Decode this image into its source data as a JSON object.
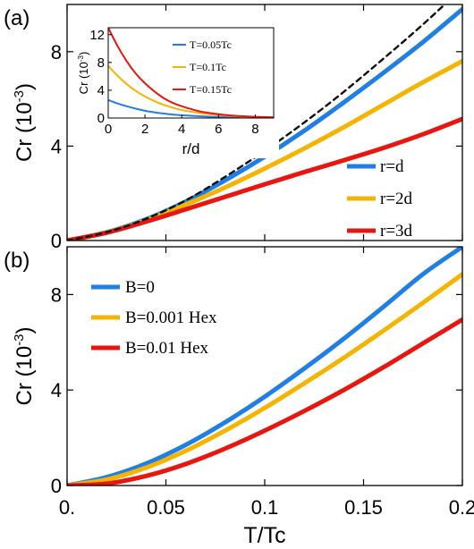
{
  "chart_data": [
    {
      "panel_label": "(a)",
      "type": "line",
      "xlim": [
        0,
        0.2
      ],
      "ylim": [
        0,
        10
      ],
      "x_ticks": [],
      "y_ticks": [
        0,
        4,
        8
      ],
      "y_tick_labels": [
        "0",
        "4",
        "8"
      ],
      "ylabel_main": "Cr (10",
      "ylabel_exp": "-3",
      "ylabel_close": ")",
      "x": [
        0,
        0.02,
        0.04,
        0.06,
        0.08,
        0.1,
        0.12,
        0.14,
        0.16,
        0.18,
        0.2
      ],
      "series": [
        {
          "name": "r=d",
          "color": "#1f7fe6",
          "values": [
            0,
            0.35,
            0.9,
            1.65,
            2.55,
            3.55,
            4.65,
            5.85,
            7.1,
            8.4,
            9.8
          ]
        },
        {
          "name": "r=2d",
          "color": "#f5b400",
          "values": [
            0,
            0.34,
            0.86,
            1.52,
            2.25,
            3.05,
            3.9,
            4.8,
            5.75,
            6.7,
            7.6
          ]
        },
        {
          "name": "r=3d",
          "color": "#e8160f",
          "values": [
            0,
            0.33,
            0.8,
            1.32,
            1.85,
            2.38,
            2.9,
            3.4,
            3.92,
            4.5,
            5.15
          ]
        },
        {
          "name": "",
          "color": "#111111",
          "style": "dashed",
          "values": [
            0,
            0.35,
            0.92,
            1.7,
            2.7,
            3.8,
            5.0,
            6.3,
            7.7,
            9.15,
            10.7
          ]
        }
      ],
      "legend": {
        "placement": "lower-right",
        "entries": [
          {
            "label": "r=d",
            "color": "#1f7fe6"
          },
          {
            "label": "r=2d",
            "color": "#f5b400"
          },
          {
            "label": "r=3d",
            "color": "#e8160f"
          }
        ]
      },
      "inset": {
        "type": "line",
        "xlim": [
          0,
          9
        ],
        "ylim": [
          0,
          13
        ],
        "x_ticks": [
          0,
          2,
          4,
          6,
          8
        ],
        "x_tick_labels": [
          "0",
          "2",
          "4",
          "6",
          "8"
        ],
        "y_ticks": [
          0,
          4,
          8,
          12
        ],
        "y_tick_labels": [
          "0",
          "4",
          "8",
          "12"
        ],
        "xlabel": "r/d",
        "ylabel_main": "Cr (10",
        "ylabel_exp": "-3",
        "ylabel_close": ")",
        "x": [
          0,
          0.5,
          1,
          1.5,
          2,
          2.5,
          3,
          3.5,
          4,
          5,
          6,
          7,
          8,
          9
        ],
        "series": [
          {
            "name": "T=0.05Tc",
            "color": "#1f7fe6",
            "values": [
              2.6,
              2.1,
              1.7,
              1.35,
              1.05,
              0.82,
              0.65,
              0.5,
              0.4,
              0.25,
              0.15,
              0.1,
              0.08,
              0.06
            ]
          },
          {
            "name": "T=0.1Tc",
            "color": "#f5b400",
            "values": [
              7.5,
              6.1,
              4.9,
              3.9,
              3.1,
              2.45,
              1.9,
              1.5,
              1.15,
              0.7,
              0.42,
              0.26,
              0.16,
              0.1
            ]
          },
          {
            "name": "T=0.15Tc",
            "color": "#e8160f",
            "values": [
              13.0,
              10.4,
              8.2,
              6.4,
              5.0,
              3.85,
              2.9,
              2.2,
              1.7,
              0.95,
              0.55,
              0.3,
              0.18,
              0.1
            ]
          }
        ],
        "legend": {
          "placement": "top-right",
          "entries": [
            {
              "label": "T=0.05Tc",
              "color": "#1f7fe6"
            },
            {
              "label": "T=0.1Tc",
              "color": "#f5b400"
            },
            {
              "label": "T=0.15Tc",
              "color": "#e8160f"
            }
          ]
        }
      }
    },
    {
      "panel_label": "(b)",
      "type": "line",
      "xlim": [
        0,
        0.2
      ],
      "ylim": [
        0,
        10
      ],
      "x_ticks": [
        0,
        0.05,
        0.1,
        0.15,
        0.2
      ],
      "x_tick_labels": [
        "0.",
        "0.05",
        "0.1",
        "0.15",
        "0.2"
      ],
      "y_ticks": [
        0,
        4,
        8
      ],
      "y_tick_labels": [
        "0",
        "4",
        "8"
      ],
      "xlabel": "T/Tc",
      "ylabel_main": "Cr (10",
      "ylabel_exp": "-3",
      "ylabel_close": ")",
      "x": [
        0,
        0.02,
        0.04,
        0.06,
        0.08,
        0.1,
        0.12,
        0.14,
        0.16,
        0.18,
        0.2
      ],
      "series": [
        {
          "name": "B=0",
          "color": "#1f7fe6",
          "values": [
            0,
            0.35,
            0.92,
            1.7,
            2.65,
            3.72,
            4.9,
            6.15,
            7.48,
            8.85,
            10.0
          ]
        },
        {
          "name": "B=0.001 Hex",
          "color": "#f5b400",
          "values": [
            0,
            0.25,
            0.75,
            1.45,
            2.3,
            3.25,
            4.28,
            5.35,
            6.48,
            7.65,
            8.85
          ]
        },
        {
          "name": "B=0.01 Hex",
          "color": "#e8160f",
          "values": [
            0,
            0.08,
            0.4,
            0.9,
            1.55,
            2.3,
            3.12,
            4.0,
            4.95,
            5.95,
            6.95
          ]
        }
      ],
      "legend": {
        "placement": "top-left",
        "entries": [
          {
            "label": "B=0",
            "color": "#1f7fe6"
          },
          {
            "label": "B=0.001 Hex",
            "color": "#f5b400"
          },
          {
            "label": "B=0.01 Hex",
            "color": "#e8160f"
          }
        ]
      }
    }
  ]
}
